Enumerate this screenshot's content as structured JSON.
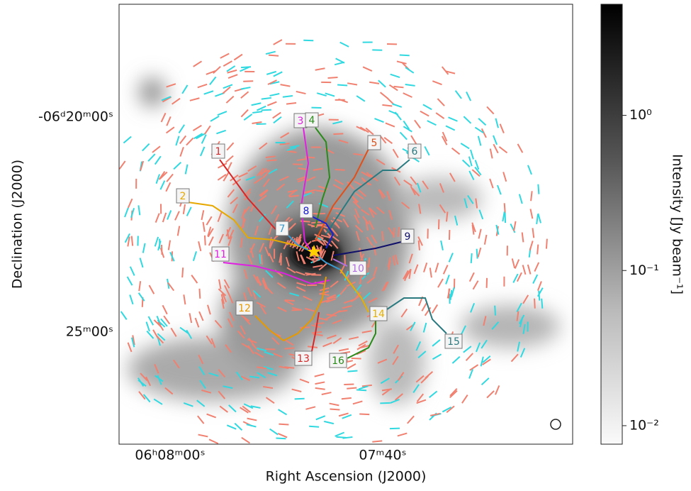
{
  "chart_data": {
    "type": "image",
    "xlabel": "Right Ascension (J2000)",
    "ylabel": "Declination (J2000)",
    "xtick_labels": [
      "06ʰ08ᵐ00ˢ",
      "07ᵐ40ˢ"
    ],
    "ytick_labels": [
      "-06ᵈ20ᵐ00ˢ",
      "25ᵐ00ˢ"
    ],
    "colorbar": {
      "label": "Intensity [Jy beam⁻¹]",
      "log": true,
      "ylim": [
        0.0076,
        5.2
      ],
      "yticks": [
        {
          "value": 1,
          "label": "10⁰"
        },
        {
          "value": 0.1,
          "label": "10⁻¹"
        },
        {
          "value": 0.01,
          "label": "10⁻²"
        }
      ]
    },
    "filaments": [
      {
        "label": "1",
        "color": "#d62728"
      },
      {
        "label": "2",
        "color": "#e6a800"
      },
      {
        "label": "3",
        "color": "#e020e0"
      },
      {
        "label": "4",
        "color": "#2a8a1a"
      },
      {
        "label": "5",
        "color": "#e0501a"
      },
      {
        "label": "6",
        "color": "#2a7a80"
      },
      {
        "label": "7",
        "color": "#3a9ad0"
      },
      {
        "label": "8",
        "color": "#1a20d0"
      },
      {
        "label": "9",
        "color": "#10106a"
      },
      {
        "label": "10",
        "color": "#b070e0"
      },
      {
        "label": "11",
        "color": "#e020e0"
      },
      {
        "label": "12",
        "color": "#e69a00"
      },
      {
        "label": "13",
        "color": "#d62728"
      },
      {
        "label": "14",
        "color": "#e6b000"
      },
      {
        "label": "15",
        "color": "#2a7a80"
      },
      {
        "label": "16",
        "color": "#2a8a1a"
      }
    ]
  }
}
